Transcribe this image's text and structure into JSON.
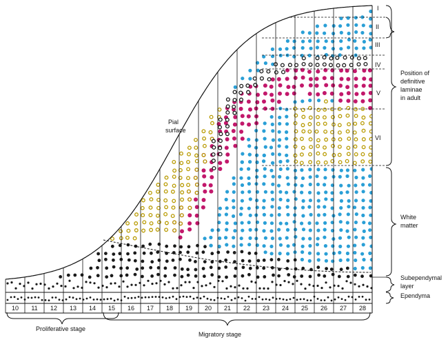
{
  "labels": {
    "pial_surface_1": "Pial",
    "pial_surface_2": "surface",
    "laminae_1": "Position of",
    "laminae_2": "definitive",
    "laminae_3": "laminae",
    "laminae_4": "in adult",
    "white_matter_1": "White",
    "white_matter_2": "matter",
    "subependymal_1": "Subependymal",
    "subependymal_2": "layer",
    "ependyma": "Ependyma",
    "proliferative": "Proliferative stage",
    "migratory": "Migratory stage"
  },
  "layers": [
    "I",
    "II",
    "III",
    "IV",
    "V",
    "VI"
  ],
  "stages": [
    "10",
    "11",
    "12",
    "13",
    "14",
    "15",
    "16",
    "17",
    "18",
    "19",
    "20",
    "21",
    "22",
    "23",
    "24",
    "25",
    "26",
    "27",
    "28"
  ],
  "colors": {
    "black": "#1a1a1a",
    "blue": "#2a9fd6",
    "magenta": "#c2186b",
    "yellow": "#f2d21b"
  }
}
